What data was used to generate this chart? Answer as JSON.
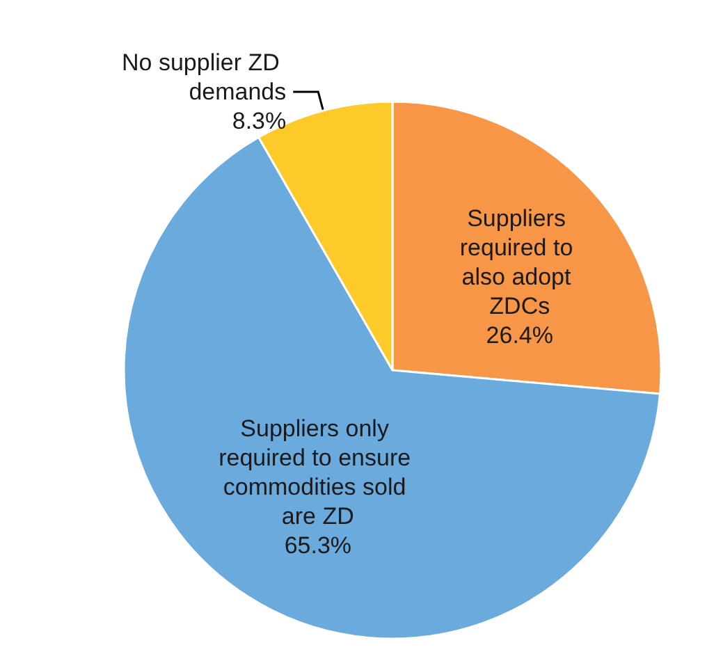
{
  "chart_data": {
    "type": "pie",
    "categories": [
      "Suppliers required to also adopt ZDCs",
      "Suppliers only required to ensure commodities sold are ZD",
      "No supplier ZD demands"
    ],
    "values": [
      26.4,
      65.3,
      8.3
    ],
    "colors": [
      "#f79646",
      "#6aaadc",
      "#fdca2a"
    ],
    "value_labels": [
      "26.4%",
      "65.3%",
      "8.3%"
    ],
    "legend": false
  }
}
